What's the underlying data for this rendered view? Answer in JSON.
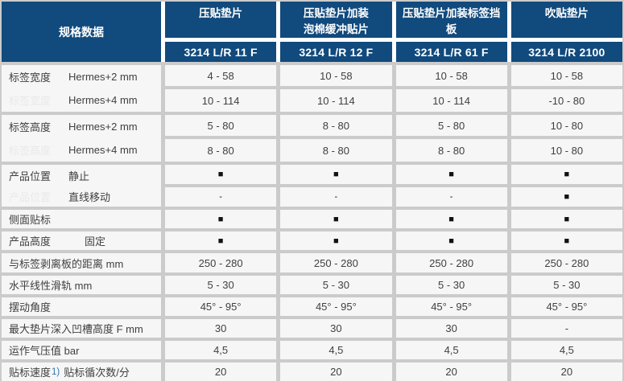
{
  "colors": {
    "header_bg": "#114a7d",
    "header_text": "#ffffff",
    "cell_bg": "#f6f6f6",
    "grid_gap_body": "#cbcbcb",
    "grid_gap_header": "#ffffff",
    "text": "#404040",
    "ghost_text": "#e9e9e9",
    "footnote_blue": "#2e74b5",
    "square": "#111111"
  },
  "header": {
    "corner_label": "规格数据",
    "columns": [
      {
        "product": "压贴垫片",
        "model": "3214 L/R 11 F"
      },
      {
        "product": "压贴垫片加装\n泡棉缓冲贴片",
        "model": "3214 L/R 12 F"
      },
      {
        "product": "压贴垫片加装标签挡\n板",
        "model": "3214 L/R 61 F"
      },
      {
        "product": "吹贴垫片",
        "model": "3214 L/R 2100"
      }
    ]
  },
  "labels": {
    "g1": {
      "l1p": "标签宽度",
      "l1s": "Hermes+2 mm",
      "l2p": "标签宽度",
      "l2s": "Hermes+4 mm"
    },
    "g2": {
      "l1p": "标签高度",
      "l1s": "Hermes+2 mm",
      "l2p": "标签高度",
      "l2s": "Hermes+4 mm"
    },
    "g3": {
      "l1p": "产品位置",
      "l1s": "静止",
      "l2p": "产品位置",
      "l2s": "直线移动"
    },
    "r7": "侧面贴标",
    "r8p": "产品高度",
    "r8s": "固定",
    "r9": "与标签剥离板的距离 mm",
    "r10": "水平线性滑轨 mm",
    "r11": "摆动角度",
    "r12": "最大垫片深入凹槽高度 F mm",
    "r13": "运作气压值 bar",
    "r14pre": "贴标速度",
    "r14fn": "1)",
    "r14suf": "贴标循次数/分"
  },
  "values": {
    "r1": [
      "4 - 58",
      "10 - 58",
      "10 - 58",
      "10 - 58"
    ],
    "r2": [
      "10 - 114",
      "10 - 114",
      "10 - 114",
      "-10 - 80"
    ],
    "r3": [
      "5 - 80",
      "8 - 80",
      "5 - 80",
      "10 - 80"
    ],
    "r4": [
      "8 - 80",
      "8 - 80",
      "8 - 80",
      "10 - 80"
    ],
    "r5": [
      "■",
      "■",
      "■",
      "■"
    ],
    "r6": [
      "-",
      "-",
      "-",
      "■"
    ],
    "r7": [
      "■",
      "■",
      "■",
      "■"
    ],
    "r8": [
      "■",
      "■",
      "■",
      "■"
    ],
    "r9": [
      "250 - 280",
      "250 - 280",
      "250 - 280",
      "250 - 280"
    ],
    "r10": [
      "5 - 30",
      "5 - 30",
      "5 - 30",
      "5 - 30"
    ],
    "r11": [
      "45° - 95°",
      "45° - 95°",
      "45° - 95°",
      "45° - 95°"
    ],
    "r12": [
      "30",
      "30",
      "30",
      "-"
    ],
    "r13": [
      "4,5",
      "4,5",
      "4,5",
      "4,5"
    ],
    "r14": [
      "20",
      "20",
      "20",
      "20"
    ]
  }
}
